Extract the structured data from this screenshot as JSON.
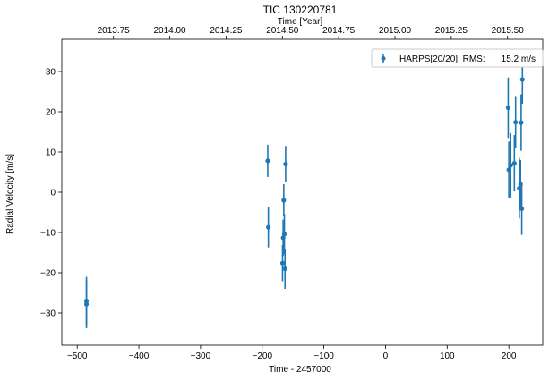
{
  "chart_data": {
    "type": "scatter",
    "title": "TIC 130220781",
    "xlabel": "Time - 2457000",
    "ylabel": "Radial Velocity [m/s]",
    "top_xlabel": "Time [Year]",
    "xlim": [
      -525,
      255
    ],
    "ylim": [
      -38,
      38
    ],
    "xticks": [
      -500,
      -400,
      -300,
      -200,
      -100,
      0,
      100,
      200
    ],
    "xtick_labels": [
      "−500",
      "−400",
      "−300",
      "−200",
      "−100",
      "0",
      "100",
      "200"
    ],
    "yticks": [
      -30,
      -20,
      -10,
      0,
      10,
      20,
      30
    ],
    "ytick_labels": [
      "−30",
      "−20",
      "−10",
      "0",
      "10",
      "20",
      "30"
    ],
    "top_ticks": [
      2013.75,
      2014.0,
      2014.25,
      2014.5,
      2014.75,
      2015.0,
      2015.25,
      2015.5
    ],
    "top_tick_labels": [
      "2013.75",
      "2014.00",
      "2014.25",
      "2014.50",
      "2014.75",
      "2015.00",
      "2015.25",
      "2015.50"
    ],
    "top_axis_conversion": {
      "reference_x": 0,
      "reference_year": 2014.958,
      "days_per_year": 365.25
    },
    "legend": {
      "placement": "top-right",
      "label": "HARPS[20/20], RMS:",
      "value": "15.2 m/s"
    },
    "grid": false,
    "series": [
      {
        "name": "HARPS[20/20]",
        "color": "#1f77b4",
        "points": [
          {
            "x": -485,
            "y": -27.0,
            "err": 6.0
          },
          {
            "x": -485,
            "y": -27.8,
            "err": 6.0
          },
          {
            "x": -191,
            "y": 7.8,
            "err": 4.0
          },
          {
            "x": -190,
            "y": -8.7,
            "err": 5.0
          },
          {
            "x": -167,
            "y": -17.6,
            "err": 4.5
          },
          {
            "x": -166,
            "y": -11.3,
            "err": 4.5
          },
          {
            "x": -165,
            "y": -2.0,
            "err": 4.0
          },
          {
            "x": -164,
            "y": -10.4,
            "err": 5.0
          },
          {
            "x": -163,
            "y": -19.0,
            "err": 5.0
          },
          {
            "x": -162,
            "y": 7.0,
            "err": 4.5
          },
          {
            "x": 199,
            "y": 21.0,
            "err": 7.5
          },
          {
            "x": 200,
            "y": 5.6,
            "err": 7.0
          },
          {
            "x": 203,
            "y": 6.7,
            "err": 8.0
          },
          {
            "x": 209,
            "y": 7.2,
            "err": 7.0
          },
          {
            "x": 211,
            "y": 17.4,
            "err": 6.5
          },
          {
            "x": 217,
            "y": 1.0,
            "err": 7.5
          },
          {
            "x": 219,
            "y": 2.0,
            "err": 6.0
          },
          {
            "x": 220,
            "y": 17.3,
            "err": 7.0
          },
          {
            "x": 221,
            "y": -4.1,
            "err": 6.5
          },
          {
            "x": 222,
            "y": 28.0,
            "err": 6.0
          }
        ]
      }
    ]
  }
}
